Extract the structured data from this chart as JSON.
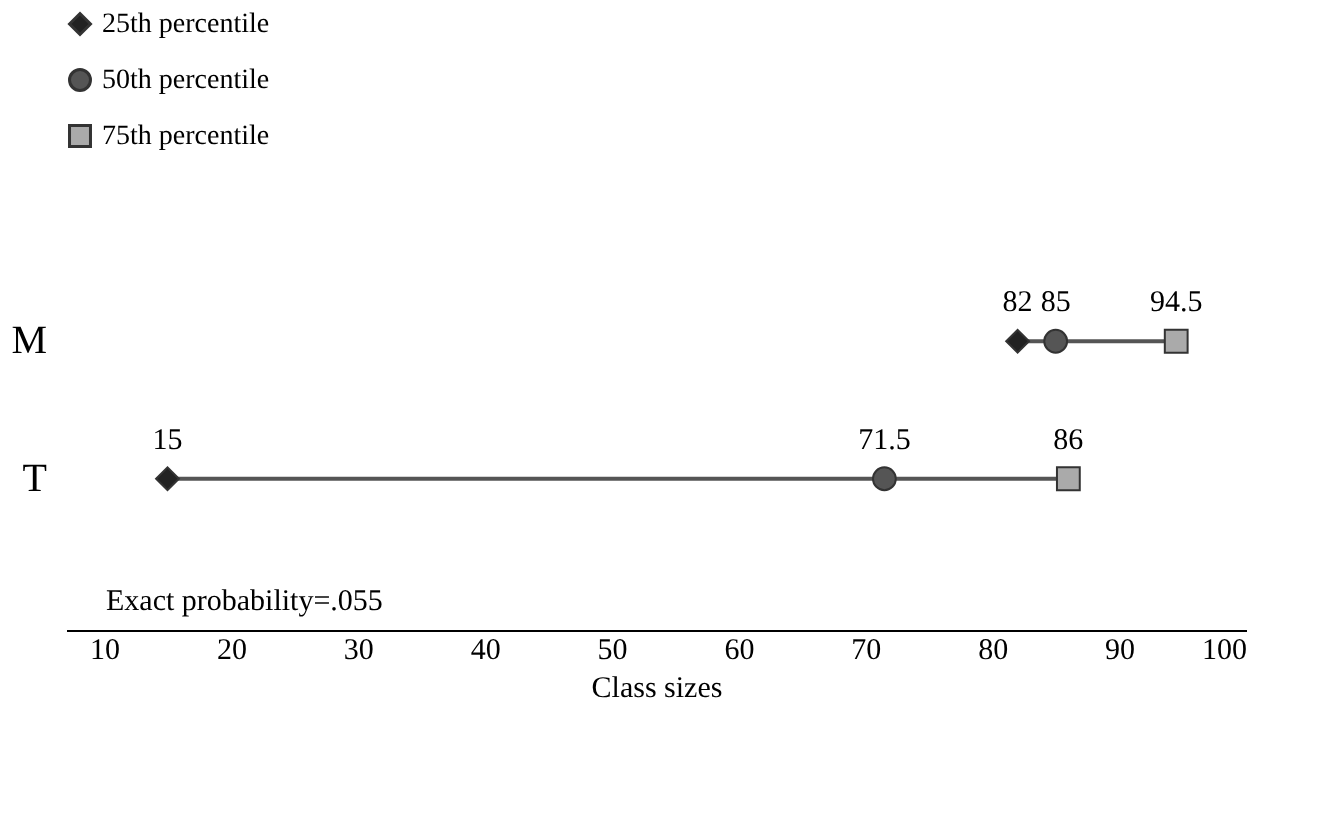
{
  "chart_data": {
    "type": "scatter",
    "orientation": "horizontal",
    "categories": [
      "M",
      "T"
    ],
    "series": [
      {
        "name": "25th percentile",
        "color": "#222222",
        "marker": "diamond",
        "values": [
          82,
          15
        ]
      },
      {
        "name": "50th percentile",
        "color": "#555555",
        "marker": "circle",
        "values": [
          85,
          71.5
        ]
      },
      {
        "name": "75th percentile",
        "color": "#aaaaaa",
        "marker": "square",
        "values": [
          94.5,
          86
        ]
      }
    ],
    "xlabel": "Class sizes",
    "xlim": [
      7,
      100
    ],
    "xticks": [
      10,
      20,
      30,
      40,
      50,
      60,
      70,
      80,
      90,
      100
    ],
    "annotations": [
      "Exact probability=.055"
    ],
    "data_labels": true,
    "legend": "top left",
    "grid": false
  }
}
